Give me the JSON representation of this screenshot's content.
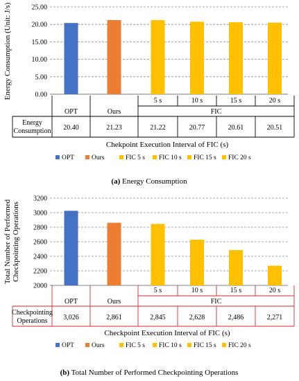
{
  "chart_data": [
    {
      "type": "bar",
      "categories": [
        "OPT",
        "Ours",
        "FIC 5 s",
        "FIC 10 s",
        "FIC 15 s",
        "FIC 20 s"
      ],
      "values": [
        20.4,
        21.23,
        21.22,
        20.77,
        20.61,
        20.51
      ],
      "colors": [
        "#4472C4",
        "#ED7D31",
        "#FFC000",
        "#FFC000",
        "#FFC000",
        "#FFC000"
      ],
      "ylabel": "Energy Consumption (Unit: J/s)",
      "xlabel": "Chekpoint Execution Interval of FIC (s)",
      "ylim": [
        0,
        25
      ],
      "yticks": [
        "0.00",
        "5.00",
        "10.00",
        "15.00",
        "20.00",
        "25.00"
      ],
      "grid": "dashed horizontal",
      "table": {
        "top_labels": [
          "OPT",
          "Ours",
          "5 s",
          "10 s",
          "15 s",
          "20 s"
        ],
        "group_label": "FIC",
        "row_header": [
          "Energy",
          "Consumption"
        ],
        "row_values": [
          "20.40",
          "21.23",
          "21.22",
          "20.77",
          "20.61",
          "20.51"
        ]
      },
      "legend": [
        "OPT",
        "Ours",
        "FIC 5 s",
        "FIC 10 s",
        "FIC 15 s",
        "FIC 20 s"
      ],
      "caption_prefix": "(a)",
      "caption_text": " Energy Consumption"
    },
    {
      "type": "bar",
      "categories": [
        "OPT",
        "Ours",
        "FIC 5 s",
        "FIC 10 s",
        "FIC 15 s",
        "FIC 20 s"
      ],
      "values": [
        3026,
        2861,
        2845,
        2628,
        2486,
        2271
      ],
      "colors": [
        "#4472C4",
        "#ED7D31",
        "#FFC000",
        "#FFC000",
        "#FFC000",
        "#FFC000"
      ],
      "ylabel": [
        "Total Number of Performed",
        "Checkpointing Operations"
      ],
      "xlabel": "Checkpoint Execution Interval of FIC (s)",
      "ylim": [
        2000,
        3200
      ],
      "yticks": [
        "2000",
        "2200",
        "2400",
        "2600",
        "2800",
        "3000",
        "3200"
      ],
      "grid": "dashed horizontal",
      "table": {
        "top_labels": [
          "OPT",
          "Ours",
          "5 s",
          "10 s",
          "15 s",
          "20 s"
        ],
        "group_label": "FIC",
        "row_header": [
          "Checkpointing",
          "Operations"
        ],
        "row_values": [
          "3,026",
          "2,861",
          "2,845",
          "2,628",
          "2,486",
          "2,271"
        ]
      },
      "legend": [
        "OPT",
        "Ours",
        "FIC 5 s",
        "FIC 10 s",
        "FIC 15 s",
        "FIC 20 s"
      ],
      "caption_prefix": "(b)",
      "caption_text": " Total Number of Performed Checkpointing Operations"
    }
  ]
}
